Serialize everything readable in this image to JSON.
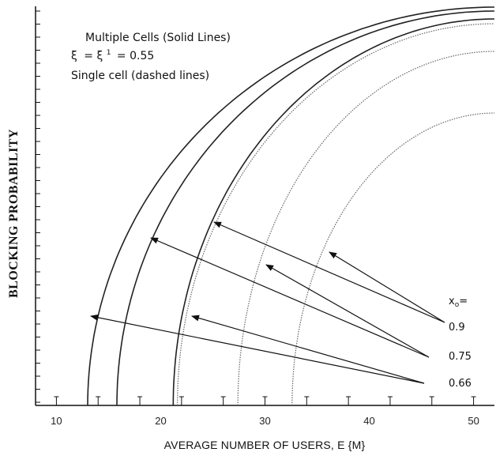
{
  "chart_data": {
    "type": "line",
    "title": "",
    "xlabel": "AVERAGE NUMBER OF USERS, E {M}",
    "ylabel": "BLOCKING PROBABILITY",
    "xlim": [
      8,
      52
    ],
    "x_ticks": [
      "10",
      "20",
      "30",
      "40",
      "50"
    ],
    "legend_text": {
      "line1": "Multiple Cells (Solid Lines)",
      "line2_symbol": "ξ",
      "line2_prime": "ξ",
      "line2_sup": "1",
      "line2_value": "= 0.55",
      "line3": "Single cell (dashed lines)"
    },
    "xo_label": "x",
    "xo_sub": "o",
    "xo_eq": "=",
    "series": [
      {
        "name": "0.66",
        "style": "solid",
        "x_start": 13
      },
      {
        "name": "0.75",
        "style": "solid",
        "x_start": 15.8
      },
      {
        "name": "0.9",
        "style": "solid",
        "x_start": 21.2
      },
      {
        "name": "0.66",
        "style": "dashed",
        "x_start": 21.6
      },
      {
        "name": "0.75",
        "style": "dashed",
        "x_start": 27.4
      },
      {
        "name": "0.9",
        "style": "dashed",
        "x_start": 32.6
      }
    ],
    "annotations": [
      {
        "label": "0.9",
        "targets": [
          "0.9 solid",
          "0.9 dashed"
        ]
      },
      {
        "label": "0.75",
        "targets": [
          "0.75 solid",
          "0.75 dashed"
        ]
      },
      {
        "label": "0.66",
        "targets": [
          "0.66 solid",
          "0.66 dashed"
        ]
      }
    ],
    "grid": false
  }
}
